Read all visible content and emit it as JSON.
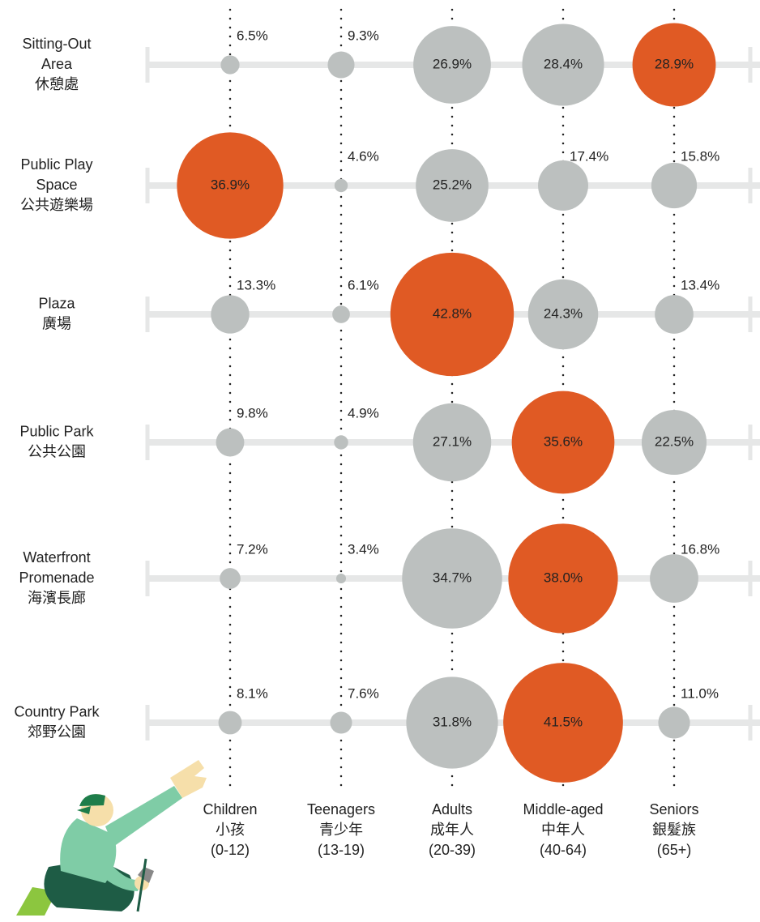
{
  "chart_data": {
    "type": "bubble",
    "category_lines": [
      [
        "Children",
        "小孩",
        "(0-12)"
      ],
      [
        "Teenagers",
        "青少年",
        "(13-19)"
      ],
      [
        "Adults",
        "成年人",
        "(20-39)"
      ],
      [
        "Middle-aged",
        "中年人",
        "(40-64)"
      ],
      [
        "Seniors",
        "銀髮族",
        "(65+)"
      ]
    ],
    "series": [
      {
        "label_lines": [
          "Sitting-Out",
          "Area",
          "休憩處"
        ],
        "values": [
          6.5,
          9.3,
          26.9,
          28.4,
          28.9
        ],
        "value_labels": [
          "6.5%",
          "9.3%",
          "26.9%",
          "28.4%",
          "28.9%"
        ],
        "colors": [
          "#bcc0bf",
          "#bcc0bf",
          "#bcc0bf",
          "#bcc0bf",
          "#e05a24"
        ]
      },
      {
        "label_lines": [
          "Public Play",
          "Space",
          "公共遊樂場"
        ],
        "values": [
          36.9,
          4.6,
          25.2,
          17.4,
          15.8
        ],
        "value_labels": [
          "36.9%",
          "4.6%",
          "25.2%",
          "17.4%",
          "15.8%"
        ],
        "colors": [
          "#e05a24",
          "#bcc0bf",
          "#bcc0bf",
          "#bcc0bf",
          "#bcc0bf"
        ]
      },
      {
        "label_lines": [
          "Plaza",
          "廣場"
        ],
        "values": [
          13.3,
          6.1,
          42.8,
          24.3,
          13.4
        ],
        "value_labels": [
          "13.3%",
          "6.1%",
          "42.8%",
          "24.3%",
          "13.4%"
        ],
        "colors": [
          "#bcc0bf",
          "#bcc0bf",
          "#e05a24",
          "#bcc0bf",
          "#bcc0bf"
        ]
      },
      {
        "label_lines": [
          "Public Park",
          "公共公園"
        ],
        "values": [
          9.8,
          4.9,
          27.1,
          35.6,
          22.5
        ],
        "value_labels": [
          "9.8%",
          "4.9%",
          "27.1%",
          "35.6%",
          "22.5%"
        ],
        "colors": [
          "#bcc0bf",
          "#bcc0bf",
          "#bcc0bf",
          "#e05a24",
          "#bcc0bf"
        ]
      },
      {
        "label_lines": [
          "Waterfront",
          "Promenade",
          "海濱長廊"
        ],
        "values": [
          7.2,
          3.4,
          34.7,
          38.0,
          16.8
        ],
        "value_labels": [
          "7.2%",
          "3.4%",
          "34.7%",
          "38.0%",
          "16.8%"
        ],
        "colors": [
          "#bcc0bf",
          "#bcc0bf",
          "#bcc0bf",
          "#e05a24",
          "#bcc0bf"
        ]
      },
      {
        "label_lines": [
          "Country Park",
          "郊野公園"
        ],
        "values": [
          8.1,
          7.6,
          31.8,
          41.5,
          11.0
        ],
        "value_labels": [
          "8.1%",
          "7.6%",
          "31.8%",
          "41.5%",
          "11.0%"
        ],
        "colors": [
          "#bcc0bf",
          "#bcc0bf",
          "#bcc0bf",
          "#e05a24",
          "#bcc0bf"
        ]
      }
    ]
  }
}
